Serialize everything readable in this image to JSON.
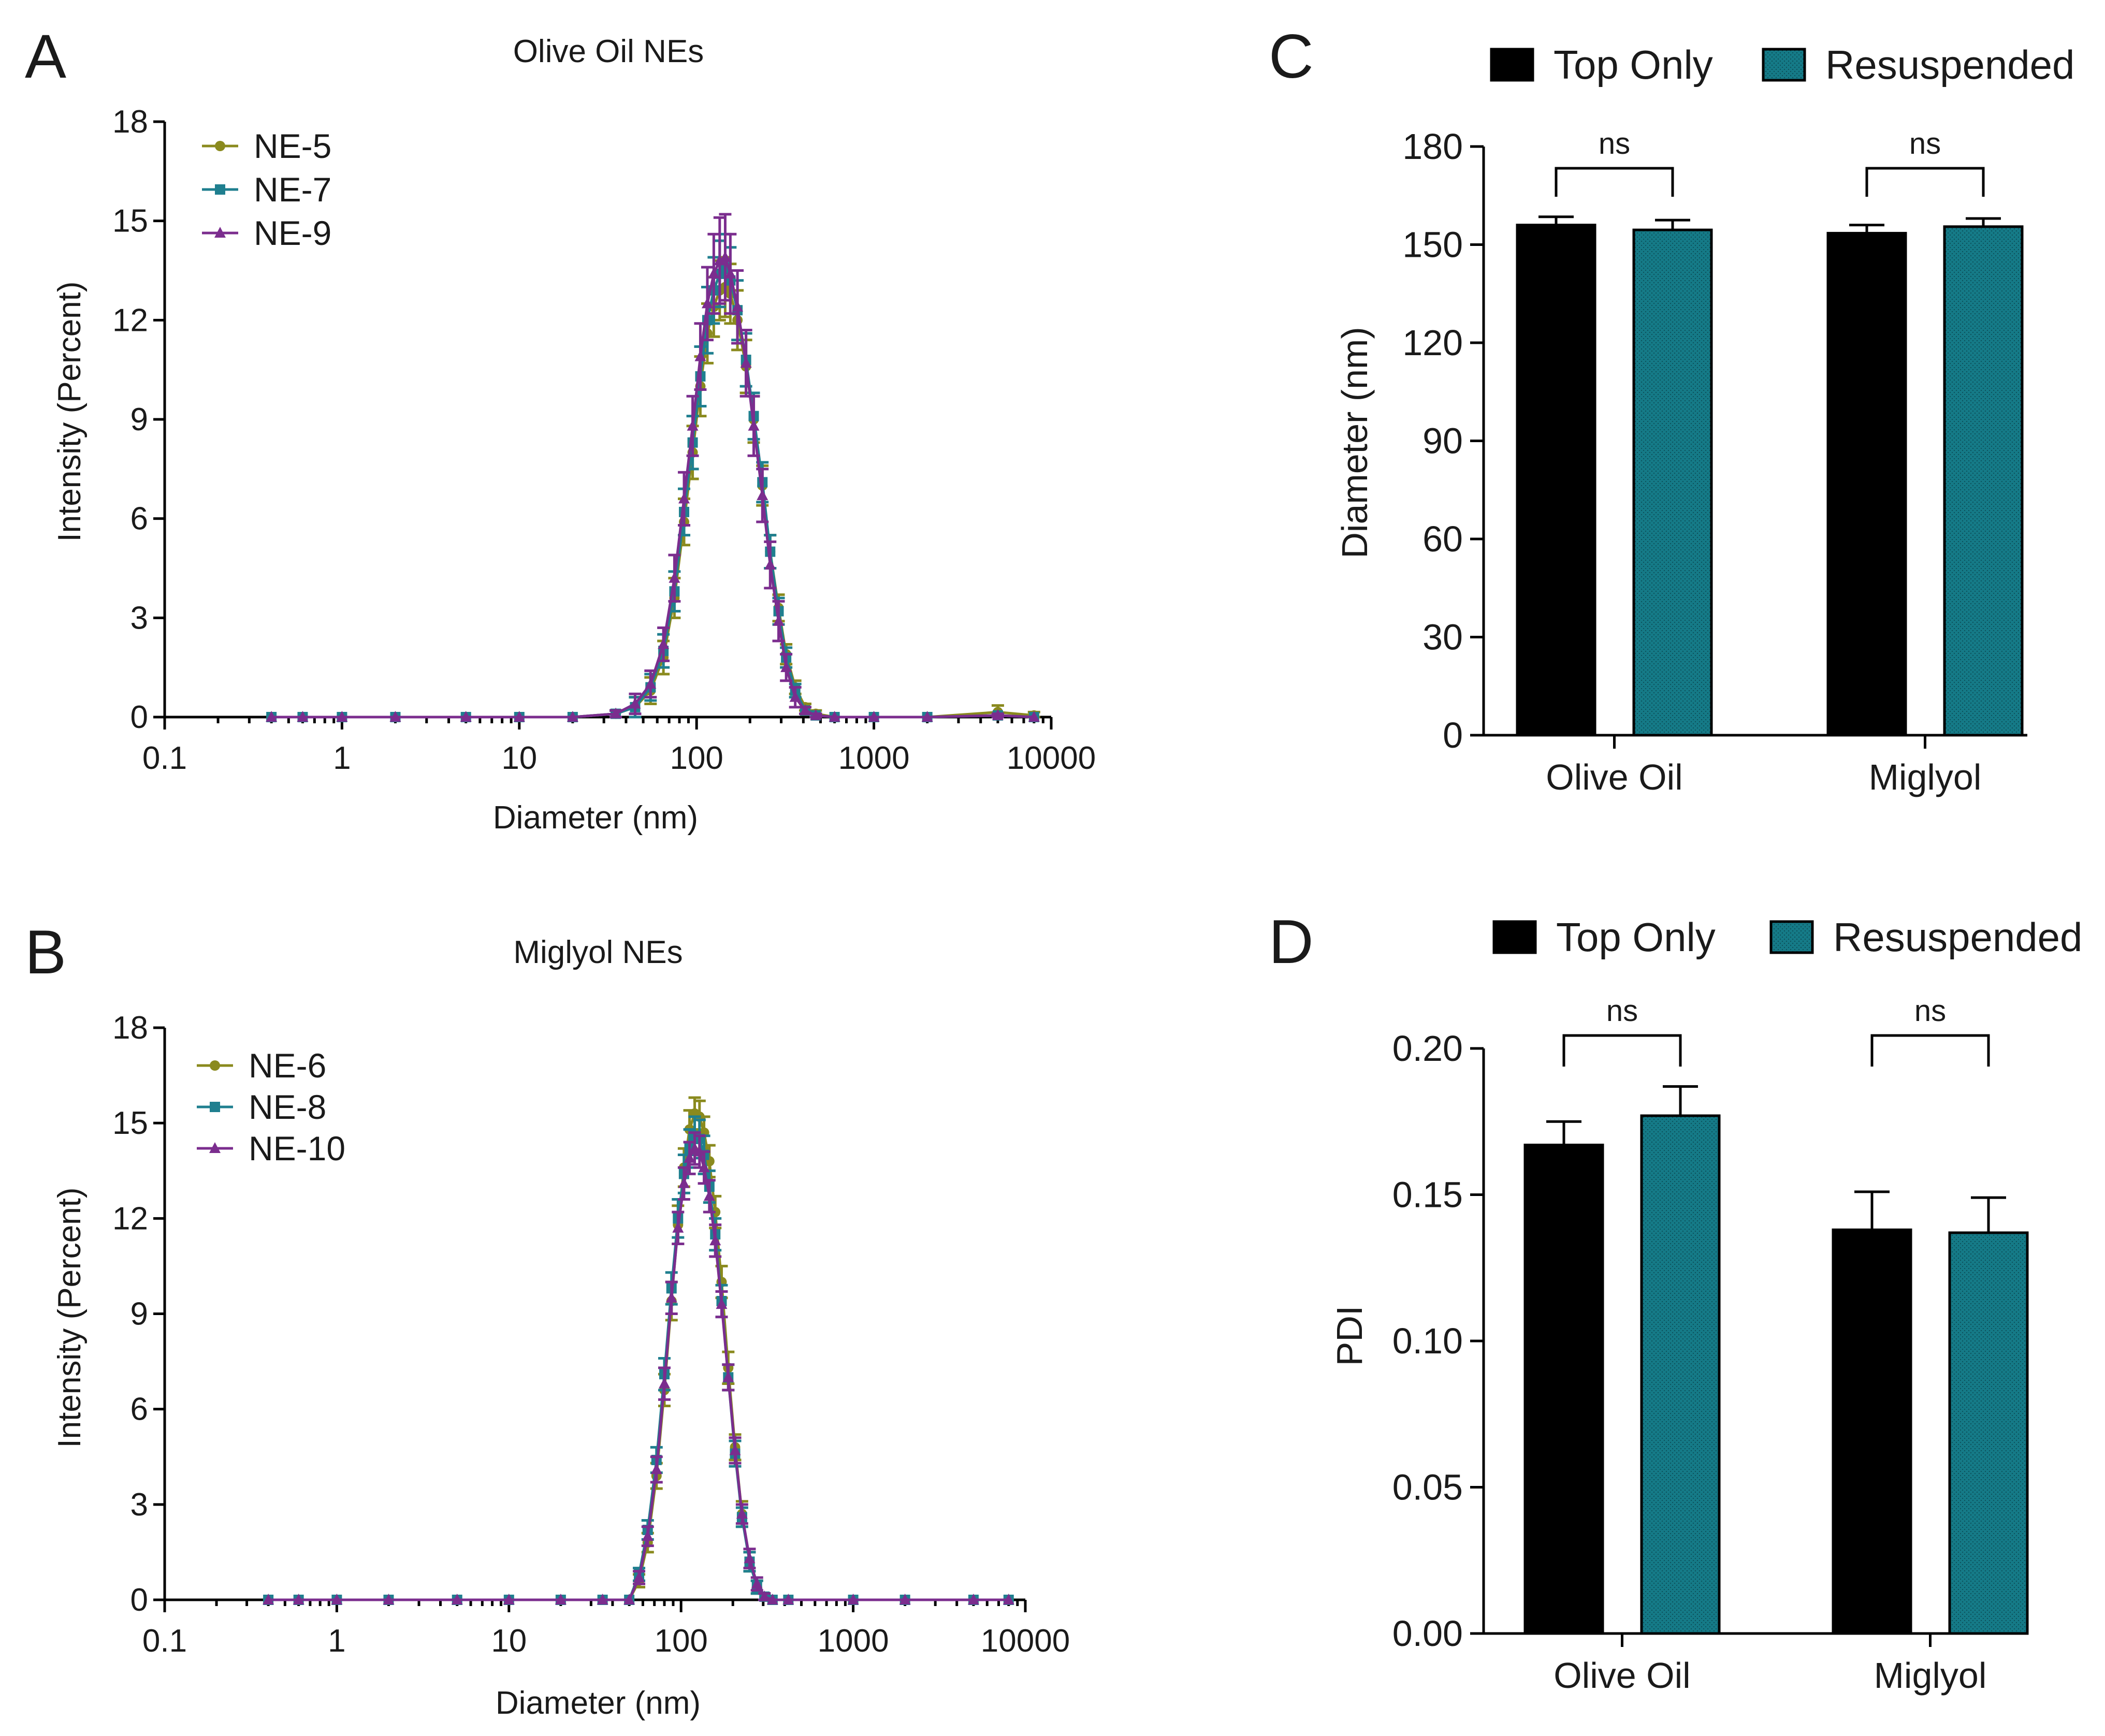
{
  "panels": {
    "A": {
      "letter": "A"
    },
    "B": {
      "letter": "B"
    },
    "C": {
      "letter": "C"
    },
    "D": {
      "letter": "D"
    }
  },
  "colors": {
    "ne_olive": "#8a8a1e",
    "ne_teal": "#1f7f8f",
    "ne_purple": "#7b2d8e",
    "top_only": "#000000",
    "resuspended": "#157a87"
  },
  "chart_data": [
    {
      "id": "A",
      "type": "line",
      "title": "Olive Oil NEs",
      "xlabel": "Diameter (nm)",
      "ylabel": "Intensity (Percent)",
      "xscale": "log",
      "xlim": [
        0.1,
        10000
      ],
      "ylim": [
        0,
        18
      ],
      "xticks": [
        "0.1",
        "1",
        "10",
        "100",
        "1000",
        "10000"
      ],
      "yticks": [
        "0",
        "3",
        "6",
        "9",
        "12",
        "15",
        "18"
      ],
      "x": [
        0.4,
        0.6,
        1,
        2,
        5,
        10,
        20,
        35,
        45,
        55,
        65,
        75,
        85,
        95,
        105,
        115,
        125,
        135,
        145,
        155,
        170,
        190,
        210,
        235,
        260,
        290,
        320,
        360,
        410,
        470,
        600,
        1000,
        2000,
        5000,
        8000
      ],
      "legend_position": "top-left",
      "series": [
        {
          "name": "NE-5",
          "marker": "circle",
          "values": [
            0,
            0,
            0,
            0,
            0,
            0,
            0,
            0.1,
            0.3,
            0.8,
            1.8,
            3.6,
            5.9,
            8.0,
            10.0,
            11.6,
            12.4,
            12.9,
            13.0,
            12.8,
            12.0,
            10.6,
            9.0,
            7.0,
            5.0,
            3.3,
            1.9,
            0.9,
            0.3,
            0.1,
            0,
            0,
            0,
            0.15,
            0.05
          ],
          "err": [
            0,
            0,
            0,
            0,
            0,
            0,
            0,
            0.1,
            0.3,
            0.4,
            0.5,
            0.6,
            0.7,
            0.8,
            0.9,
            0.9,
            0.9,
            0.9,
            0.9,
            0.9,
            0.9,
            0.8,
            0.7,
            0.6,
            0.5,
            0.4,
            0.3,
            0.2,
            0.1,
            0.1,
            0,
            0,
            0,
            0.2,
            0.1
          ]
        },
        {
          "name": "NE-7",
          "marker": "square",
          "values": [
            0,
            0,
            0,
            0,
            0,
            0,
            0,
            0.1,
            0.3,
            0.9,
            2.0,
            3.8,
            6.2,
            8.3,
            10.3,
            12.0,
            12.9,
            13.4,
            13.6,
            13.2,
            12.3,
            10.8,
            9.1,
            7.1,
            5.0,
            3.2,
            1.8,
            0.8,
            0.2,
            0.05,
            0,
            0,
            0,
            0.05,
            0
          ],
          "err": [
            0,
            0,
            0,
            0,
            0,
            0,
            0,
            0.1,
            0.3,
            0.4,
            0.5,
            0.6,
            0.7,
            0.8,
            0.9,
            1.0,
            1.0,
            1.0,
            1.0,
            1.0,
            0.9,
            0.8,
            0.7,
            0.6,
            0.5,
            0.4,
            0.3,
            0.2,
            0.1,
            0.05,
            0,
            0,
            0,
            0.05,
            0
          ]
        },
        {
          "name": "NE-9",
          "marker": "triangle",
          "values": [
            0,
            0,
            0,
            0,
            0,
            0,
            0,
            0.1,
            0.4,
            1.0,
            2.2,
            4.2,
            6.6,
            8.8,
            10.9,
            12.5,
            13.4,
            13.8,
            13.9,
            13.4,
            12.4,
            10.7,
            8.8,
            6.7,
            4.6,
            2.9,
            1.5,
            0.6,
            0.2,
            0.05,
            0,
            0,
            0,
            0.05,
            0
          ],
          "err": [
            0,
            0,
            0,
            0,
            0,
            0,
            0,
            0.1,
            0.3,
            0.4,
            0.5,
            0.7,
            0.8,
            0.9,
            1.0,
            1.1,
            1.2,
            1.3,
            1.3,
            1.2,
            1.1,
            1.0,
            0.9,
            0.8,
            0.7,
            0.6,
            0.4,
            0.3,
            0.1,
            0.05,
            0,
            0,
            0,
            0.05,
            0
          ]
        }
      ]
    },
    {
      "id": "B",
      "type": "line",
      "title": "Miglyol NEs",
      "xlabel": "Diameter (nm)",
      "ylabel": "Intensity (Percent)",
      "xscale": "log",
      "xlim": [
        0.1,
        10000
      ],
      "ylim": [
        0,
        18
      ],
      "xticks": [
        "0.1",
        "1",
        "10",
        "100",
        "1000",
        "10000"
      ],
      "yticks": [
        "0",
        "3",
        "6",
        "9",
        "12",
        "15",
        "18"
      ],
      "x": [
        0.4,
        0.6,
        1,
        2,
        5,
        10,
        20,
        35,
        50,
        57,
        64,
        72,
        80,
        88,
        96,
        104,
        112,
        120,
        128,
        136,
        146,
        158,
        172,
        188,
        206,
        226,
        250,
        276,
        305,
        340,
        420,
        1000,
        2000,
        5000,
        8000
      ],
      "legend_position": "top-left",
      "series": [
        {
          "name": "NE-6",
          "marker": "circle",
          "values": [
            0,
            0,
            0,
            0,
            0,
            0,
            0,
            0,
            0,
            0.6,
            1.8,
            3.9,
            6.6,
            9.4,
            11.8,
            13.6,
            14.8,
            15.3,
            15.2,
            14.7,
            13.8,
            12.2,
            10.0,
            7.3,
            4.8,
            2.7,
            1.2,
            0.4,
            0.1,
            0,
            0,
            0,
            0,
            0,
            0
          ],
          "err": [
            0,
            0,
            0,
            0,
            0,
            0,
            0,
            0,
            0,
            0.2,
            0.3,
            0.4,
            0.5,
            0.6,
            0.6,
            0.6,
            0.6,
            0.5,
            0.5,
            0.5,
            0.5,
            0.5,
            0.5,
            0.5,
            0.4,
            0.4,
            0.3,
            0.2,
            0.1,
            0,
            0,
            0,
            0,
            0,
            0
          ]
        },
        {
          "name": "NE-8",
          "marker": "square",
          "values": [
            0,
            0,
            0,
            0,
            0,
            0,
            0,
            0,
            0,
            0.8,
            2.2,
            4.4,
            7.1,
            9.8,
            12.0,
            13.4,
            14.2,
            14.6,
            14.5,
            14.0,
            13.0,
            11.5,
            9.4,
            7.0,
            4.6,
            2.6,
            1.2,
            0.4,
            0.1,
            0,
            0,
            0,
            0,
            0,
            0
          ],
          "err": [
            0,
            0,
            0,
            0,
            0,
            0,
            0,
            0,
            0,
            0.2,
            0.3,
            0.4,
            0.5,
            0.5,
            0.6,
            0.6,
            0.6,
            0.6,
            0.6,
            0.6,
            0.5,
            0.5,
            0.5,
            0.4,
            0.4,
            0.3,
            0.3,
            0.2,
            0.1,
            0,
            0,
            0,
            0,
            0,
            0
          ]
        },
        {
          "name": "NE-10",
          "marker": "triangle",
          "values": [
            0,
            0,
            0,
            0,
            0,
            0,
            0,
            0,
            0,
            0.7,
            2.0,
            4.1,
            6.8,
            9.5,
            11.7,
            13.1,
            13.9,
            14.2,
            14.1,
            13.6,
            12.7,
            11.3,
            9.3,
            7.0,
            4.7,
            2.7,
            1.3,
            0.5,
            0.1,
            0,
            0,
            0,
            0,
            0,
            0
          ],
          "err": [
            0,
            0,
            0,
            0,
            0,
            0,
            0,
            0,
            0,
            0.2,
            0.3,
            0.4,
            0.5,
            0.5,
            0.5,
            0.5,
            0.5,
            0.5,
            0.5,
            0.5,
            0.5,
            0.5,
            0.4,
            0.4,
            0.4,
            0.3,
            0.3,
            0.2,
            0.1,
            0,
            0,
            0,
            0,
            0,
            0
          ]
        }
      ]
    },
    {
      "id": "C",
      "type": "bar",
      "title": "",
      "xlabel": "",
      "ylabel": "Diameter (nm)",
      "ylim": [
        0,
        180
      ],
      "yticks": [
        "0",
        "30",
        "60",
        "90",
        "120",
        "150",
        "180"
      ],
      "categories": [
        "Olive Oil",
        "Miglyol"
      ],
      "legend_position": "top",
      "series": [
        {
          "name": "Top Only",
          "values": [
            156,
            153.5
          ],
          "err": [
            2.5,
            2.5
          ]
        },
        {
          "name": "Resuspended",
          "values": [
            154.5,
            155.5
          ],
          "err": [
            3,
            2.5
          ]
        }
      ],
      "significance": [
        "ns",
        "ns"
      ]
    },
    {
      "id": "D",
      "type": "bar",
      "title": "",
      "xlabel": "",
      "ylabel": "PDI",
      "ylim": [
        0,
        0.2
      ],
      "yticks": [
        "0.00",
        "0.05",
        "0.10",
        "0.15",
        "0.20"
      ],
      "categories": [
        "Olive Oil",
        "Miglyol"
      ],
      "legend_position": "top",
      "series": [
        {
          "name": "Top Only",
          "values": [
            0.167,
            0.138
          ],
          "err": [
            0.008,
            0.013
          ]
        },
        {
          "name": "Resuspended",
          "values": [
            0.177,
            0.137
          ],
          "err": [
            0.01,
            0.012
          ]
        }
      ],
      "significance": [
        "ns",
        "ns"
      ]
    }
  ]
}
